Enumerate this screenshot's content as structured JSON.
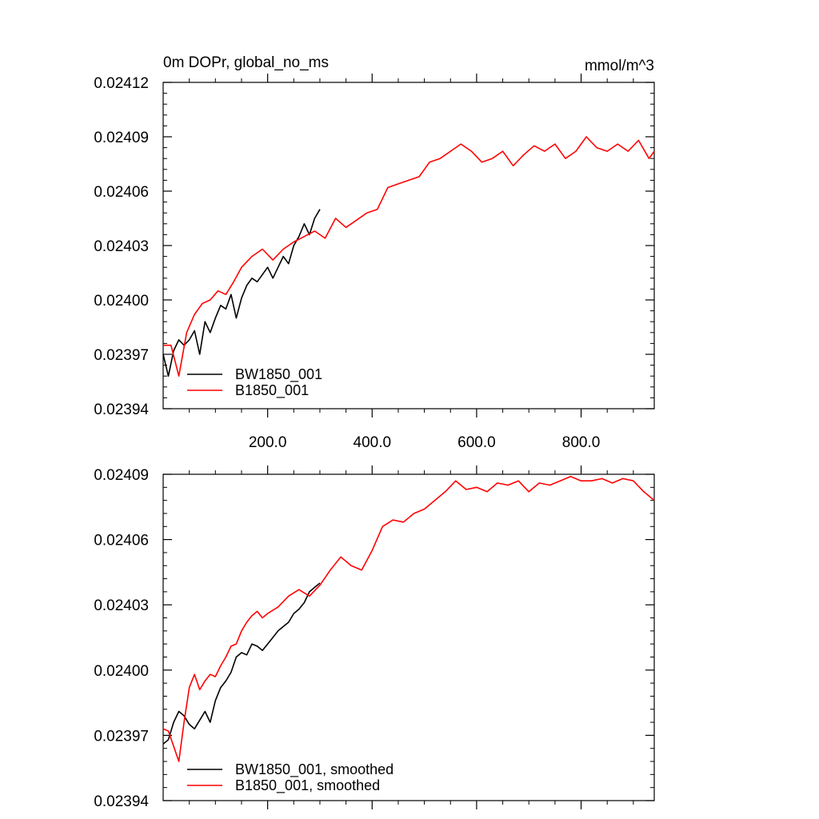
{
  "chart_data": [
    {
      "type": "line",
      "title_left": "0m DOPr, global_no_ms",
      "title_right": "mmol/m^3",
      "xlim": [
        0,
        940
      ],
      "ylim": [
        0.02394,
        0.02412
      ],
      "yticks": [
        {
          "value": 0.02394,
          "label": "0.02394"
        },
        {
          "value": 0.02397,
          "label": "0.02397"
        },
        {
          "value": 0.024,
          "label": "0.02400"
        },
        {
          "value": 0.02403,
          "label": "0.02403"
        },
        {
          "value": 0.02406,
          "label": "0.02406"
        },
        {
          "value": 0.02409,
          "label": "0.02409"
        },
        {
          "value": 0.02412,
          "label": "0.02412"
        }
      ],
      "xticks": [
        {
          "value": 200,
          "label": "200.0"
        },
        {
          "value": 400,
          "label": "400.0"
        },
        {
          "value": 600,
          "label": "600.0"
        },
        {
          "value": 800,
          "label": "800.0"
        }
      ],
      "grid": false,
      "legend_position": "bottom-left",
      "series": [
        {
          "name": "BW1850_001",
          "color": "#000000",
          "x": [
            0,
            10,
            20,
            30,
            40,
            50,
            60,
            70,
            80,
            90,
            100,
            110,
            120,
            130,
            140,
            150,
            160,
            170,
            180,
            190,
            200,
            210,
            220,
            230,
            240,
            250,
            260,
            270,
            280,
            290,
            300
          ],
          "values": [
            0.02397,
            0.023958,
            0.023972,
            0.023978,
            0.023975,
            0.023978,
            0.023983,
            0.02397,
            0.023988,
            0.023982,
            0.02399,
            0.023997,
            0.023995,
            0.024003,
            0.02399,
            0.024001,
            0.024008,
            0.024012,
            0.02401,
            0.024014,
            0.024018,
            0.024012,
            0.024018,
            0.024024,
            0.02402,
            0.02403,
            0.024035,
            0.024042,
            0.024036,
            0.024045,
            0.02405
          ]
        },
        {
          "name": "B1850_001",
          "color": "#ff0000",
          "x": [
            0,
            15,
            30,
            45,
            60,
            75,
            90,
            105,
            120,
            135,
            150,
            170,
            190,
            210,
            230,
            250,
            270,
            290,
            310,
            330,
            350,
            370,
            390,
            410,
            430,
            450,
            470,
            490,
            510,
            530,
            550,
            570,
            590,
            610,
            630,
            650,
            670,
            690,
            710,
            730,
            750,
            770,
            790,
            810,
            830,
            850,
            870,
            890,
            910,
            930,
            940
          ],
          "values": [
            0.023975,
            0.023975,
            0.023958,
            0.023982,
            0.023992,
            0.023998,
            0.024,
            0.024005,
            0.024003,
            0.02401,
            0.024018,
            0.024024,
            0.024028,
            0.024022,
            0.024028,
            0.024032,
            0.024035,
            0.024038,
            0.024034,
            0.024045,
            0.02404,
            0.024044,
            0.024048,
            0.02405,
            0.024062,
            0.024064,
            0.024066,
            0.024068,
            0.024076,
            0.024078,
            0.024082,
            0.024086,
            0.024082,
            0.024076,
            0.024078,
            0.024082,
            0.024074,
            0.02408,
            0.024085,
            0.024082,
            0.024086,
            0.024078,
            0.024082,
            0.02409,
            0.024084,
            0.024082,
            0.024086,
            0.024082,
            0.024088,
            0.024078,
            0.024082
          ]
        }
      ],
      "legend": [
        "BW1850_001",
        "B1850_001"
      ]
    },
    {
      "type": "line",
      "xlim": [
        0,
        940
      ],
      "ylim": [
        0.02394,
        0.02409
      ],
      "yticks": [
        {
          "value": 0.02394,
          "label": "0.02394"
        },
        {
          "value": 0.02397,
          "label": "0.02397"
        },
        {
          "value": 0.024,
          "label": "0.02400"
        },
        {
          "value": 0.02403,
          "label": "0.02403"
        },
        {
          "value": 0.02406,
          "label": "0.02406"
        },
        {
          "value": 0.02409,
          "label": "0.02409"
        }
      ],
      "xticks": [
        {
          "value": 200,
          "label": ""
        },
        {
          "value": 400,
          "label": ""
        },
        {
          "value": 600,
          "label": ""
        },
        {
          "value": 800,
          "label": ""
        }
      ],
      "grid": false,
      "legend_position": "bottom-left",
      "series": [
        {
          "name": "BW1850_001, smoothed",
          "color": "#000000",
          "x": [
            0,
            10,
            20,
            30,
            40,
            50,
            60,
            70,
            80,
            90,
            100,
            110,
            120,
            130,
            140,
            150,
            160,
            170,
            180,
            190,
            200,
            210,
            220,
            230,
            240,
            250,
            260,
            270,
            280,
            290,
            300
          ],
          "values": [
            0.023966,
            0.023968,
            0.023976,
            0.023981,
            0.023979,
            0.023975,
            0.023973,
            0.023977,
            0.023981,
            0.023976,
            0.023986,
            0.023992,
            0.023995,
            0.023999,
            0.024006,
            0.024008,
            0.024007,
            0.024012,
            0.024011,
            0.024009,
            0.024012,
            0.024015,
            0.024018,
            0.02402,
            0.024022,
            0.024026,
            0.024028,
            0.024031,
            0.024036,
            0.024038,
            0.02404
          ]
        },
        {
          "name": "B1850_001, smoothed",
          "color": "#ff0000",
          "x": [
            0,
            10,
            20,
            30,
            40,
            50,
            60,
            70,
            80,
            90,
            100,
            110,
            120,
            130,
            140,
            150,
            160,
            170,
            180,
            190,
            200,
            220,
            240,
            260,
            280,
            300,
            320,
            340,
            360,
            380,
            400,
            420,
            440,
            460,
            480,
            500,
            520,
            540,
            560,
            580,
            600,
            620,
            640,
            660,
            680,
            700,
            720,
            740,
            760,
            780,
            800,
            820,
            840,
            860,
            880,
            900,
            920,
            940
          ],
          "values": [
            0.023973,
            0.023972,
            0.023965,
            0.023958,
            0.023976,
            0.023992,
            0.023998,
            0.023991,
            0.023995,
            0.023998,
            0.023997,
            0.024002,
            0.024006,
            0.024011,
            0.024012,
            0.024018,
            0.024022,
            0.024025,
            0.024027,
            0.024024,
            0.024026,
            0.024029,
            0.024034,
            0.024037,
            0.024034,
            0.024039,
            0.024046,
            0.024052,
            0.024048,
            0.024046,
            0.024055,
            0.024066,
            0.024069,
            0.024068,
            0.024072,
            0.024074,
            0.024078,
            0.024082,
            0.024087,
            0.024083,
            0.024084,
            0.024082,
            0.024086,
            0.024085,
            0.024087,
            0.024082,
            0.024086,
            0.024085,
            0.024087,
            0.024089,
            0.024087,
            0.024087,
            0.024088,
            0.024086,
            0.024088,
            0.024087,
            0.024082,
            0.024078
          ]
        }
      ],
      "legend": [
        "BW1850_001, smoothed",
        "B1850_001, smoothed"
      ]
    }
  ]
}
